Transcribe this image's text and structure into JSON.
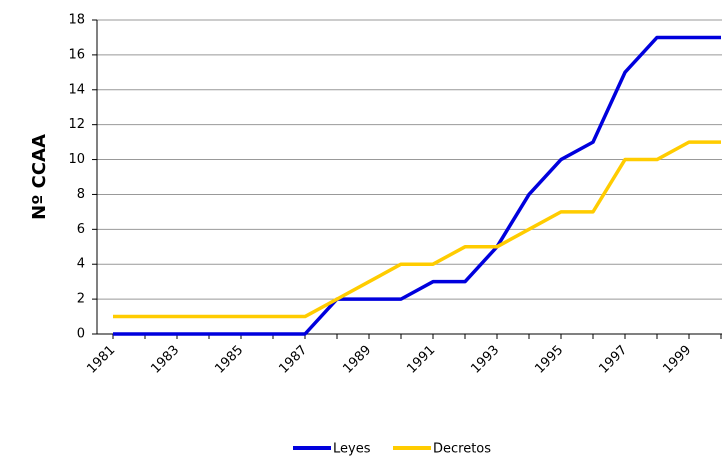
{
  "chart_data": {
    "type": "line",
    "y_label": "Nº CCAA",
    "categories": [
      "1981",
      null,
      "1983",
      null,
      "1985",
      null,
      "1987",
      null,
      "1989",
      null,
      "1991",
      null,
      "1993",
      null,
      "1995",
      null,
      "1997",
      null,
      "1999",
      null
    ],
    "series": [
      {
        "name": "Leyes",
        "color": "#0000dd",
        "values": [
          0,
          0,
          0,
          0,
          0,
          0,
          0,
          2,
          2,
          2,
          3,
          3,
          5,
          8,
          10,
          11,
          15,
          17,
          17,
          17
        ]
      },
      {
        "name": "Decretos",
        "color": "#ffcc00",
        "values": [
          1,
          1,
          1,
          1,
          1,
          1,
          1,
          2,
          3,
          4,
          4,
          5,
          5,
          6,
          7,
          7,
          10,
          10,
          11,
          11
        ]
      }
    ],
    "ylim": [
      0,
      18
    ],
    "yticks": [
      0,
      2,
      4,
      6,
      8,
      10,
      12,
      14,
      16,
      18
    ],
    "grid": true
  }
}
